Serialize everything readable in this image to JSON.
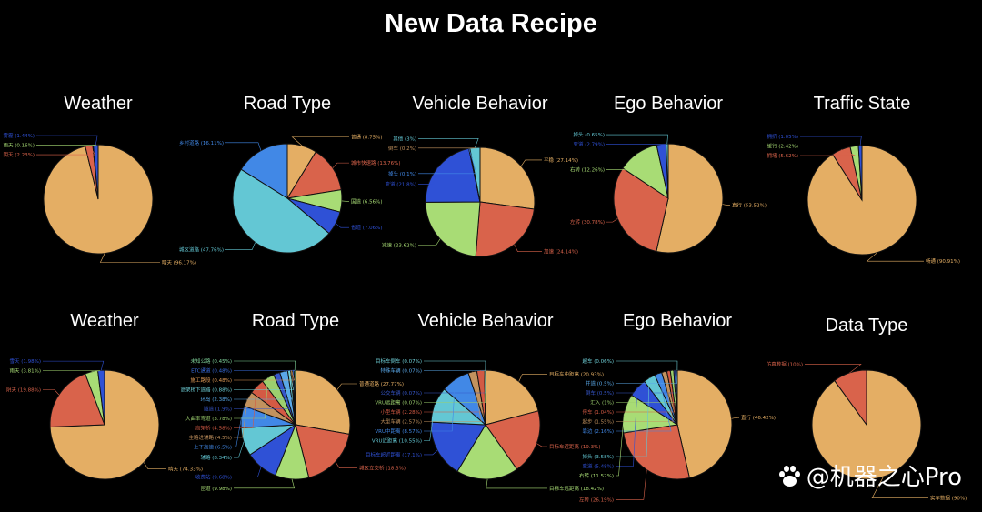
{
  "title": "New Data Recipe",
  "watermark": "@机器之心Pro",
  "colors": [
    "#e4ae64",
    "#d9634b",
    "#a8dc75",
    "#2f51d6",
    "#63c7d4",
    "#4188e6",
    "#c2925e",
    "#d35a44",
    "#9ccf6e",
    "#3656c9",
    "#5aa8e8",
    "#6fd0d8",
    "#e09a56",
    "#3a6ee0",
    "#7fd39a"
  ],
  "chart_data": [
    {
      "type": "pie",
      "title": "Weather",
      "labels": [
        "晴天",
        "阴天",
        "雨天",
        "雾霾"
      ],
      "values": [
        96.17,
        2.23,
        0.16,
        1.44
      ]
    },
    {
      "type": "pie",
      "title": "Road Type",
      "labels": [
        "普通",
        "城市快速路",
        "国道",
        "省道",
        "城区道路",
        "乡村道路"
      ],
      "values": [
        8.75,
        13.76,
        6.56,
        7.06,
        47.76,
        16.11
      ]
    },
    {
      "type": "pie",
      "title": "Vehicle Behavior",
      "labels": [
        "平稳",
        "加速",
        "减速",
        "变道",
        "掉头",
        "倒车",
        "其他"
      ],
      "values": [
        27.14,
        24.14,
        23.62,
        21.8,
        0.1,
        0.2,
        3.0
      ],
      "colorIdx": [
        0,
        1,
        2,
        3,
        5,
        6,
        4
      ]
    },
    {
      "type": "pie",
      "title": "Ego Behavior",
      "labels": [
        "直行",
        "左转",
        "右转",
        "变道",
        "掉头"
      ],
      "values": [
        53.52,
        30.78,
        12.26,
        2.79,
        0.65
      ]
    },
    {
      "type": "pie",
      "title": "Traffic State",
      "labels": [
        "畅通",
        "拥堵",
        "缓行",
        "拥挤"
      ],
      "values": [
        90.91,
        5.62,
        2.42,
        1.05
      ]
    },
    {
      "type": "pie",
      "title": "Weather",
      "labels": [
        "晴天",
        "阴天",
        "雨天",
        "雪天"
      ],
      "values": [
        74.33,
        19.88,
        3.81,
        1.98
      ]
    },
    {
      "type": "pie",
      "title": "Road Type",
      "labels": [
        "普通道路",
        "城区立交桥",
        "匝道",
        "收费站",
        "辅路",
        "上下高速",
        "主路进辅路",
        "高架桥",
        "大曲率弯道",
        "隧道",
        "环岛",
        "高架桥下道路",
        "施工路段",
        "ETC通道",
        "未知公路"
      ],
      "values": [
        27.77,
        18.3,
        9.98,
        9.68,
        8.34,
        6.5,
        4.5,
        4.58,
        3.78,
        1.9,
        2.38,
        0.88,
        0.48,
        0.48,
        0.45
      ]
    },
    {
      "type": "pie",
      "title": "Vehicle Behavior",
      "labels": [
        "目标车中距离",
        "目标车近距离",
        "目标车远距离",
        "目标车超近距离",
        "VRU近距离",
        "VRU中距离",
        "大型车辆",
        "小型车辆",
        "VRU远距离",
        "公交车辆",
        "特殊车辆",
        "目标车倒车"
      ],
      "values": [
        20.93,
        19.3,
        18.42,
        17.1,
        10.55,
        8.57,
        2.57,
        2.28,
        0.07,
        0.07,
        0.07,
        0.07
      ]
    },
    {
      "type": "pie",
      "title": "Ego Behavior",
      "labels": [
        "直行",
        "左转",
        "右转",
        "变道",
        "掉头",
        "靠边",
        "起步",
        "停车",
        "汇入",
        "倒车",
        "并道",
        "超车"
      ],
      "values": [
        46.42,
        26.19,
        11.52,
        5.48,
        3.58,
        2.16,
        1.55,
        1.04,
        1.0,
        0.5,
        0.5,
        0.06
      ]
    },
    {
      "type": "pie",
      "title": "Data Type",
      "labels": [
        "实车数据",
        "仿真数据"
      ],
      "values": [
        90,
        10
      ]
    }
  ]
}
